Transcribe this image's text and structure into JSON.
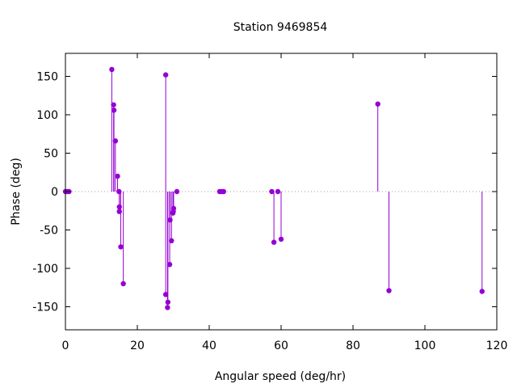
{
  "chart_data": {
    "type": "scatter",
    "style": "impulses-with-points",
    "title": "Station 9469854",
    "xlabel": "Angular speed (deg/hr)",
    "ylabel": "Phase (deg)",
    "xlim": [
      0,
      120
    ],
    "ylim": [
      -180,
      180
    ],
    "xticks": [
      0,
      20,
      40,
      60,
      80,
      100,
      120
    ],
    "yticks": [
      -150,
      -100,
      -50,
      0,
      50,
      100,
      150
    ],
    "grid": false,
    "zero_line": "dotted",
    "series_color": "#9400d3",
    "points": [
      {
        "x": 0.0,
        "y": 0
      },
      {
        "x": 0.5,
        "y": 0
      },
      {
        "x": 1.0,
        "y": 0
      },
      {
        "x": 12.9,
        "y": 159
      },
      {
        "x": 13.4,
        "y": 113
      },
      {
        "x": 13.5,
        "y": 106
      },
      {
        "x": 13.9,
        "y": 66
      },
      {
        "x": 14.5,
        "y": 20
      },
      {
        "x": 14.9,
        "y": 0
      },
      {
        "x": 15.0,
        "y": -20
      },
      {
        "x": 15.0,
        "y": -26
      },
      {
        "x": 15.4,
        "y": -72
      },
      {
        "x": 16.1,
        "y": -120
      },
      {
        "x": 27.9,
        "y": 152
      },
      {
        "x": 27.9,
        "y": -134
      },
      {
        "x": 28.4,
        "y": -151
      },
      {
        "x": 28.5,
        "y": -144
      },
      {
        "x": 29.0,
        "y": -95
      },
      {
        "x": 29.1,
        "y": -37
      },
      {
        "x": 29.5,
        "y": -64
      },
      {
        "x": 29.9,
        "y": -28
      },
      {
        "x": 30.0,
        "y": -26
      },
      {
        "x": 30.1,
        "y": -22
      },
      {
        "x": 31.0,
        "y": 0
      },
      {
        "x": 42.9,
        "y": 0
      },
      {
        "x": 43.5,
        "y": 0
      },
      {
        "x": 44.0,
        "y": 0
      },
      {
        "x": 57.4,
        "y": 0
      },
      {
        "x": 58.0,
        "y": -66
      },
      {
        "x": 59.1,
        "y": 0
      },
      {
        "x": 60.0,
        "y": -62
      },
      {
        "x": 86.9,
        "y": 114
      },
      {
        "x": 90.0,
        "y": -129
      },
      {
        "x": 115.9,
        "y": -130
      }
    ]
  }
}
